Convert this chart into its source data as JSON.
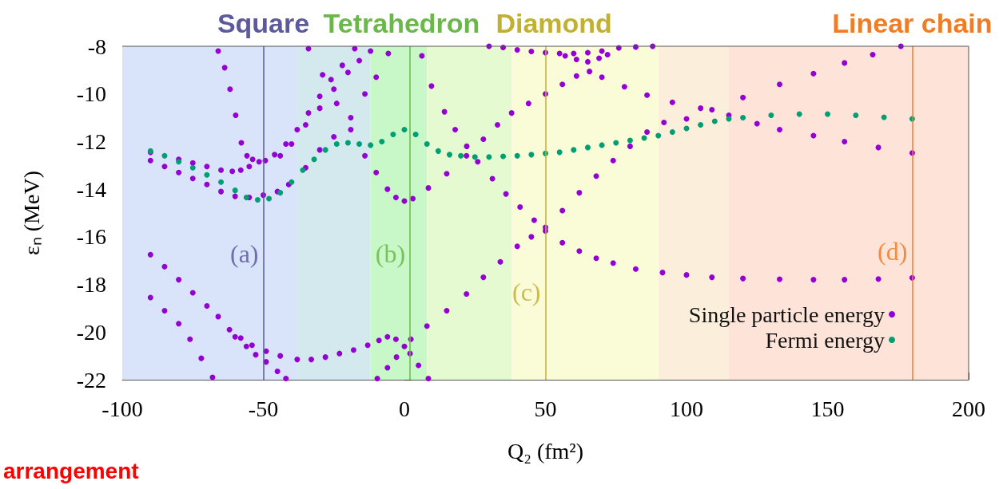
{
  "chart_data": {
    "type": "scatter",
    "xlabel": "Q₂ (fm²)",
    "ylabel": "εₙ (MeV)",
    "xlim": [
      -100,
      200
    ],
    "xticks": [
      -100,
      -50,
      0,
      50,
      100,
      150,
      200
    ],
    "ylim": [
      -22,
      -8
    ],
    "yticks": [
      -22,
      -20,
      -18,
      -16,
      -14,
      -12,
      -10,
      -8
    ],
    "legend": "bottom right",
    "marker": "circle",
    "series": [
      {
        "name": "Single particle energy",
        "color": "#9400d3",
        "x": [
          -66,
          -63.7,
          -61.8,
          -59.8,
          -57.8,
          -55.8,
          -53.8,
          -51.5,
          -90,
          -85,
          -80,
          -75,
          -70,
          -65,
          -61,
          -58,
          -55,
          -49.3,
          -46,
          -42,
          -38,
          -34,
          -30,
          -26,
          -22,
          -17.6,
          -44,
          -40,
          -35,
          -30,
          -25,
          -20,
          -16,
          -12,
          -90,
          -85,
          -80,
          -75,
          -70,
          -65,
          -60,
          -55,
          -50,
          -45,
          -41,
          -35,
          -30,
          -25,
          -19,
          -14,
          -10,
          -5.7,
          -34,
          -29,
          -24,
          -19,
          -14,
          -10,
          -6,
          -3,
          0,
          3,
          8.5,
          15,
          22,
          28,
          33,
          38,
          44,
          50,
          56,
          61,
          65.6,
          70,
          78,
          86,
          95,
          105,
          115,
          125,
          133,
          145,
          156,
          168,
          180,
          -90,
          -85,
          -80,
          -75,
          -70,
          -66,
          -62,
          -58,
          -54,
          -49,
          -44,
          -38,
          -33,
          -28,
          -23,
          -18,
          -13,
          -9,
          -6,
          -3,
          0,
          2,
          5,
          8.5,
          -90,
          -85,
          -80,
          -76,
          -72,
          -68,
          -60,
          -56,
          -52.7,
          -49,
          -45,
          -42,
          -9.6,
          -6,
          -2.8,
          2.3,
          8,
          15,
          22,
          28,
          34,
          40,
          45,
          50,
          56,
          62,
          68,
          74,
          80,
          86,
          92,
          100,
          109,
          120,
          133,
          145,
          156,
          166,
          176,
          6.2,
          9.6,
          14.2,
          18,
          22.1,
          26,
          31.2,
          36,
          41,
          46,
          50,
          56,
          62,
          68,
          74,
          82,
          91.5,
          100,
          109,
          120,
          133,
          145,
          156,
          168,
          180,
          30,
          35,
          40,
          45,
          50,
          55,
          60,
          65,
          70,
          76,
          82,
          88,
          57,
          61,
          65,
          69,
          72
        ],
        "values": [
          -8.2,
          -8.9,
          -9.8,
          -10.9,
          -12.05,
          -12.6,
          -12.75,
          -12.85,
          -12.45,
          null,
          -12.75,
          -12.9,
          -13.05,
          -13.2,
          -13.25,
          -13.2,
          -13.05,
          -12.8,
          -12.55,
          -12.1,
          -11.5,
          -10.8,
          -10.1,
          -9.4,
          -8.8,
          -8.1,
          -12.6,
          -12.1,
          -11.3,
          -10.6,
          -9.8,
          -9.1,
          -8.6,
          -8.2,
          -12.8,
          -13.05,
          -13.3,
          -13.55,
          -13.8,
          -14.1,
          -14.3,
          -14.35,
          -14.25,
          -14.1,
          -13.8,
          -13.1,
          -12.35,
          -11.8,
          -11,
          -10,
          -9.3,
          -8.3,
          -8.1,
          -9.2,
          -10.4,
          -11.5,
          -12.6,
          -13.3,
          -14,
          -14.35,
          -14.5,
          -14.4,
          -13.95,
          -13.35,
          -12.6,
          -11.9,
          -11.3,
          -10.8,
          -10.4,
          -10,
          -9.6,
          -9.25,
          -9.06,
          -9.3,
          -9.7,
          -10.05,
          -10.35,
          -10.6,
          -10.9,
          -11.25,
          -11.5,
          -11.75,
          -12,
          -12.25,
          -12.48,
          -16.75,
          -17.25,
          -17.8,
          -18.35,
          -18.9,
          -19.35,
          -19.9,
          -20.25,
          -20.55,
          -20.8,
          -21,
          -21.15,
          -21.15,
          -21.05,
          -20.9,
          -20.75,
          -20.55,
          -20.35,
          -20.2,
          -20.3,
          -20.6,
          -20.9,
          -21.4,
          -21.95,
          -18.55,
          -19.1,
          -19.65,
          -20.3,
          -21.1,
          -21.9,
          -20.2,
          -20.6,
          -20.95,
          -21.25,
          -21.65,
          -21.95,
          -21.95,
          -21.5,
          -21.05,
          -20.3,
          -19.75,
          -19.1,
          -18.4,
          -17.7,
          -17.05,
          -16.4,
          -16,
          -15.6,
          -14.9,
          -14.15,
          -13.45,
          -12.8,
          -12.2,
          -11.6,
          -11.2,
          -11.05,
          -10.66,
          -10.15,
          -9.6,
          -9.15,
          -8.7,
          -8.35,
          -8,
          -8.4,
          -9.67,
          -10.75,
          -11.5,
          -12.2,
          -12.85,
          -13.56,
          -14.2,
          -14.75,
          -15.3,
          -15.75,
          -16.25,
          -16.6,
          -16.9,
          -17.1,
          -17.35,
          -17.5,
          -17.6,
          -17.7,
          -17.75,
          -17.78,
          -17.8,
          -17.8,
          -17.77,
          -17.72,
          -8,
          -8.05,
          -8.15,
          -8.22,
          -8.27,
          -8.3,
          -8.3,
          -8.27,
          -8.2,
          -8.07,
          -8.03,
          -8,
          -8.4,
          -8.55,
          -8.65,
          -8.5,
          -8.35
        ]
      },
      {
        "name": "Fermi energy",
        "color": "#009e73",
        "x": [
          -90,
          -85,
          -80,
          -75,
          -70,
          -65,
          -60,
          -56,
          -52,
          -48,
          -44,
          -40,
          -36,
          -32,
          -28,
          -24,
          -20,
          -16,
          -12,
          -8,
          -4,
          0,
          4,
          8,
          12,
          16,
          20,
          25,
          30,
          35,
          40,
          45,
          50,
          55,
          60,
          65,
          70,
          75,
          80,
          85,
          90,
          95,
          100,
          105,
          110,
          115,
          120,
          130,
          140,
          150,
          160,
          170,
          180
        ],
        "values": [
          -12.4,
          -12.6,
          -12.85,
          -13.1,
          -13.4,
          -13.7,
          -14.05,
          -14.35,
          -14.45,
          -14.4,
          -14.15,
          -13.7,
          -13.2,
          -12.75,
          -12.35,
          -12.1,
          -12.05,
          -12.1,
          -12.15,
          -12,
          -11.7,
          -11.5,
          -11.7,
          -12.1,
          -12.4,
          -12.55,
          -12.6,
          -12.65,
          -12.65,
          -12.62,
          -12.6,
          -12.55,
          -12.5,
          -12.45,
          -12.35,
          -12.25,
          -12.15,
          -12.05,
          -11.95,
          -11.85,
          -11.75,
          -11.6,
          -11.45,
          -11.3,
          -11.15,
          -11.05,
          -11,
          -10.9,
          -10.85,
          -10.85,
          -10.9,
          -10.98,
          -11.05
        ]
      }
    ],
    "ref_lines": [
      {
        "axis": "x",
        "value": -50,
        "label": "Square",
        "color": "#5c5a9c",
        "line_style": "solid"
      },
      {
        "axis": "x",
        "value": 2,
        "label": "Tetrahedron",
        "color": "#6ab84a",
        "line_style": "solid"
      },
      {
        "axis": "x",
        "value": 50,
        "label": "Diamond",
        "color": "#c2b032",
        "line_style": "solid"
      },
      {
        "axis": "x",
        "value": 180,
        "label": "Linear chain",
        "color": "#f07d26",
        "line_style": "solid"
      }
    ],
    "bands": [
      {
        "axis": "x",
        "from": -100,
        "to": -38,
        "color": "#d9e4fa"
      },
      {
        "axis": "x",
        "from": -38,
        "to": -12,
        "color": "#d3e9ee"
      },
      {
        "axis": "x",
        "from": -12,
        "to": 8,
        "color": "#c8f7c8"
      },
      {
        "axis": "x",
        "from": 8,
        "to": 38,
        "color": "#e6fad2"
      },
      {
        "axis": "x",
        "from": 38,
        "to": 90,
        "color": "#fafcd8"
      },
      {
        "axis": "x",
        "from": 90,
        "to": 115,
        "color": "#fbeedb"
      },
      {
        "axis": "x",
        "from": 115,
        "to": 200,
        "color": "#fde3d8"
      }
    ],
    "annotations": [
      {
        "text": "(a)",
        "x": -50,
        "y": -16.7
      },
      {
        "text": "(b)",
        "x": 2,
        "y": -16.7
      },
      {
        "text": "(c)",
        "x": 50,
        "y": -18.3
      },
      {
        "text": "(d)",
        "x": 180,
        "y": -16.6
      },
      "arrangement"
    ]
  }
}
